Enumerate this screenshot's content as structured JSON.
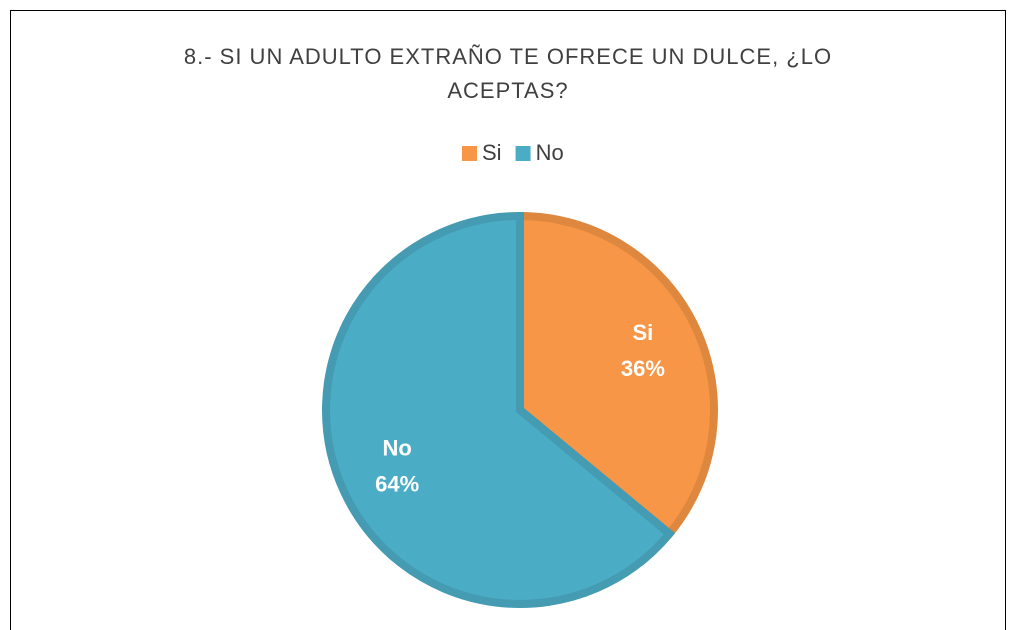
{
  "chart_data": {
    "type": "pie",
    "title": "8.- SI UN ADULTO EXTRAÑO TE OFRECE UN DULCE, ¿LO ACEPTAS?",
    "categories": [
      "Si",
      "No"
    ],
    "values": [
      36,
      64
    ],
    "value_labels": [
      "36%",
      "64%"
    ],
    "colors": [
      "#f79646",
      "#4bacc6"
    ],
    "legend": "top"
  }
}
